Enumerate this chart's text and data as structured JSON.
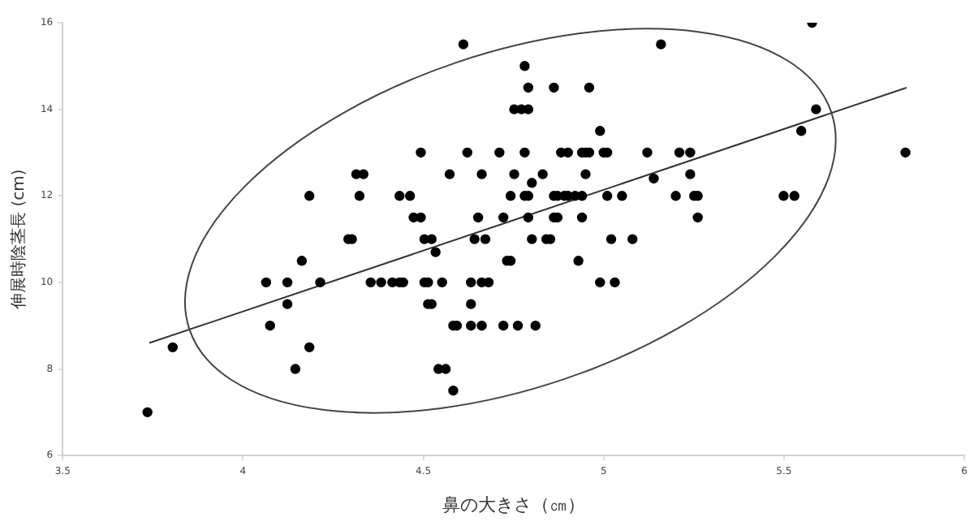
{
  "chart_data": {
    "type": "scatter",
    "xlabel": "鼻の大きさ（㎝）",
    "ylabel": "伸展時陰茎長 (cm)",
    "xlim": [
      3.5,
      6
    ],
    "xticks": [
      3.5,
      4,
      4.5,
      5,
      5.5,
      6
    ],
    "ylim": [
      6,
      16
    ],
    "yticks": [
      6,
      8,
      10,
      12,
      14,
      16
    ],
    "grid": false,
    "legend": false,
    "series": [
      {
        "type": "scatter",
        "marker": "circle",
        "color": "#000000",
        "x": [
          3.735,
          3.805,
          4.064,
          4.075,
          4.123,
          4.123,
          4.145,
          4.163,
          4.184,
          4.184,
          4.214,
          4.292,
          4.302,
          4.314,
          4.334,
          4.323,
          4.354,
          4.383,
          4.414,
          4.434,
          4.444,
          4.434,
          4.463,
          4.473,
          4.493,
          4.493,
          4.503,
          4.523,
          4.503,
          4.513,
          4.513,
          4.523,
          4.534,
          4.552,
          4.542,
          4.562,
          4.583,
          4.583,
          4.593,
          4.611,
          4.573,
          4.622,
          4.632,
          4.632,
          4.632,
          4.642,
          4.652,
          4.662,
          4.662,
          4.681,
          4.662,
          4.672,
          4.711,
          4.722,
          4.722,
          4.732,
          4.742,
          4.742,
          4.752,
          4.752,
          4.772,
          4.791,
          4.762,
          4.781,
          4.791,
          4.781,
          4.781,
          4.791,
          4.791,
          4.801,
          4.801,
          4.811,
          4.831,
          4.841,
          4.852,
          4.862,
          4.862,
          4.872,
          4.862,
          4.872,
          4.882,
          4.901,
          4.891,
          4.901,
          4.921,
          4.94,
          4.93,
          4.94,
          4.95,
          4.94,
          4.95,
          4.96,
          4.96,
          4.99,
          4.99,
          5.0,
          5.01,
          5.031,
          5.01,
          5.051,
          5.021,
          5.08,
          5.121,
          5.139,
          5.159,
          5.2,
          5.21,
          5.24,
          5.24,
          5.251,
          5.261,
          5.261,
          5.499,
          5.529,
          5.548,
          5.578,
          5.589,
          5.837
        ],
        "values": [
          7,
          8.5,
          10,
          9,
          10,
          9.5,
          8,
          10.5,
          12,
          8.5,
          10,
          11,
          11,
          12.5,
          12.5,
          12,
          10,
          10,
          10,
          10,
          10,
          12,
          12,
          11.5,
          11.5,
          13,
          11,
          11,
          10,
          10,
          9.5,
          9.5,
          10.7,
          10,
          8,
          8,
          7.5,
          9,
          9,
          15.5,
          12.5,
          13,
          10,
          9.5,
          9,
          11,
          11.5,
          12.5,
          10,
          10,
          9,
          11,
          13,
          11.5,
          9,
          10.5,
          10.5,
          12,
          12.5,
          14,
          14,
          14,
          9,
          15,
          14.5,
          13,
          12,
          12,
          11.5,
          12.3,
          11,
          9,
          12.5,
          11,
          11,
          14.5,
          12,
          12,
          11.5,
          11.5,
          13,
          13,
          12,
          12,
          12,
          12,
          10.5,
          11.5,
          12.5,
          13,
          13,
          13,
          14.5,
          13.5,
          10,
          13,
          13,
          10,
          12,
          12,
          11,
          11,
          13,
          12.4,
          15.5,
          12,
          13,
          13,
          12.5,
          12,
          12,
          11.5,
          12,
          12,
          13.5,
          16,
          14,
          13
        ]
      },
      {
        "type": "line",
        "marker": "none",
        "color": "#333333",
        "x": [
          3.74,
          5.84
        ],
        "values": [
          8.6,
          14.5
        ]
      }
    ]
  }
}
